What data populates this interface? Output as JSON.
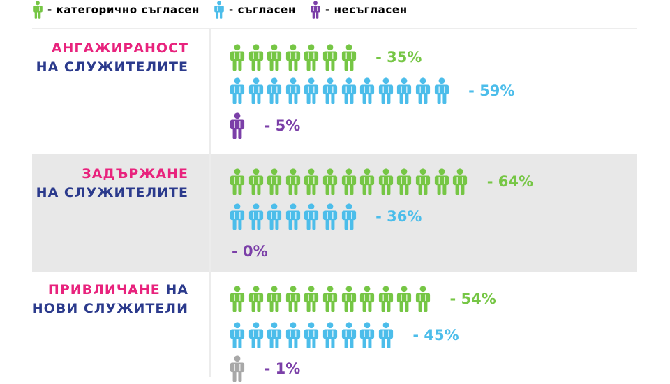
{
  "colors": {
    "strongly_agree": "#76c645",
    "agree": "#4cbdea",
    "disagree": "#7b3fa8",
    "partial": "#a8a8a8",
    "highlight": "#e8237d",
    "category_text": "#2b3a8c"
  },
  "legend": [
    {
      "label": "- категорично съгласен",
      "color": "#76c645",
      "icon": "person-icon"
    },
    {
      "label": "- съгласен",
      "color": "#4cbdea",
      "icon": "person-icon"
    },
    {
      "label": "- несъгласен",
      "color": "#7b3fa8",
      "icon": "person-icon"
    }
  ],
  "chart_data": {
    "type": "pictograph",
    "unit": "%",
    "series": [
      {
        "name": "- категорично съгласен",
        "color": "#76c645"
      },
      {
        "name": "- съгласен",
        "color": "#4cbdea"
      },
      {
        "name": "- несъгласен",
        "color": "#7b3fa8"
      }
    ],
    "categories": [
      {
        "label_highlight": "АНГАЖИРАНОСТ",
        "label_rest": "НА СЛУЖИТЕЛИТЕ",
        "label_break": true,
        "shaded": false,
        "rows": [
          {
            "series": "- категорично съгласен",
            "value": 35,
            "label": "- 35%",
            "icons": 7,
            "color": "#76c645",
            "last_icon_color": "#76c645"
          },
          {
            "series": "- съгласен",
            "value": 59,
            "label": "- 59%",
            "icons": 12,
            "color": "#4cbdea",
            "last_icon_color": "#4cbdea"
          },
          {
            "series": "- несъгласен",
            "value": 5,
            "label": "- 5%",
            "icons": 1,
            "color": "#7b3fa8",
            "last_icon_color": "#7b3fa8"
          }
        ]
      },
      {
        "label_highlight": "ЗАДЪРЖАНЕ",
        "label_rest": "НА СЛУЖИТЕЛИТЕ",
        "label_break": true,
        "shaded": true,
        "rows": [
          {
            "series": "- категорично съгласен",
            "value": 64,
            "label": "- 64%",
            "icons": 13,
            "color": "#76c645",
            "last_icon_color": "#76c645"
          },
          {
            "series": "- съгласен",
            "value": 36,
            "label": "- 36%",
            "icons": 7,
            "color": "#4cbdea",
            "last_icon_color": "#4cbdea"
          },
          {
            "series": "- несъгласен",
            "value": 0,
            "label": "- 0%",
            "icons": 0,
            "color": "#7b3fa8",
            "last_icon_color": "#7b3fa8"
          }
        ]
      },
      {
        "label_highlight": "ПРИВЛИЧАНЕ",
        "label_rest": "НА НОВИ СЛУЖИТЕЛИ",
        "label_break": false,
        "shaded": false,
        "rows": [
          {
            "series": "- категорично съгласен",
            "value": 54,
            "label": "- 54%",
            "icons": 11,
            "color": "#76c645",
            "last_icon_color": "#76c645"
          },
          {
            "series": "- съгласен",
            "value": 45,
            "label": "- 45%",
            "icons": 9,
            "color": "#4cbdea",
            "last_icon_color": "#4cbdea"
          },
          {
            "series": "- несъгласен",
            "value": 1,
            "label": "- 1%",
            "icons": 1,
            "color": "#7b3fa8",
            "last_icon_color": "#a8a8a8"
          }
        ]
      }
    ]
  }
}
